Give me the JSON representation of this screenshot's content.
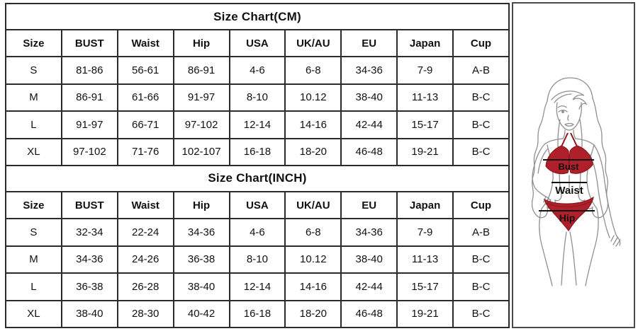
{
  "tables": [
    {
      "title": "Size Chart(CM)",
      "columns": [
        "Size",
        "BUST",
        "Waist",
        "Hip",
        "USA",
        "UK/AU",
        "EU",
        "Japan",
        "Cup"
      ],
      "rows": [
        [
          "S",
          "81-86",
          "56-61",
          "86-91",
          "4-6",
          "6-8",
          "34-36",
          "7-9",
          "A-B"
        ],
        [
          "M",
          "86-91",
          "61-66",
          "91-97",
          "8-10",
          "10.12",
          "38-40",
          "11-13",
          "B-C"
        ],
        [
          "L",
          "91-97",
          "66-71",
          "97-102",
          "12-14",
          "14-16",
          "42-44",
          "15-17",
          "B-C"
        ],
        [
          "XL",
          "97-102",
          "71-76",
          "102-107",
          "16-18",
          "18-20",
          "46-48",
          "19-21",
          "B-C"
        ]
      ]
    },
    {
      "title": "Size Chart(INCH)",
      "columns": [
        "Size",
        "BUST",
        "Waist",
        "Hip",
        "USA",
        "UK/AU",
        "EU",
        "Japan",
        "Cup"
      ],
      "rows": [
        [
          "S",
          "32-34",
          "22-24",
          "34-36",
          "4-6",
          "6-8",
          "34-36",
          "7-9",
          "A-B"
        ],
        [
          "M",
          "34-36",
          "24-26",
          "36-38",
          "8-10",
          "10.12",
          "38-40",
          "11-13",
          "B-C"
        ],
        [
          "L",
          "36-38",
          "26-28",
          "38-40",
          "12-14",
          "14-16",
          "42-44",
          "15-17",
          "B-C"
        ],
        [
          "XL",
          "38-40",
          "28-30",
          "40-42",
          "16-18",
          "18-20",
          "46-48",
          "19-21",
          "B-C"
        ]
      ]
    }
  ],
  "figure": {
    "labels": {
      "bust": "Bust",
      "waist": "Waist",
      "hip": "Hip"
    }
  },
  "colors": {
    "bikini_red": "#b0202a",
    "bikini_red_dark": "#8c161c",
    "table_border": "#2b2b2b",
    "figure_box_border": "#4a4a4a",
    "text": "#111111",
    "line_art": "#8f8f8f",
    "measure_line": "#111111"
  }
}
